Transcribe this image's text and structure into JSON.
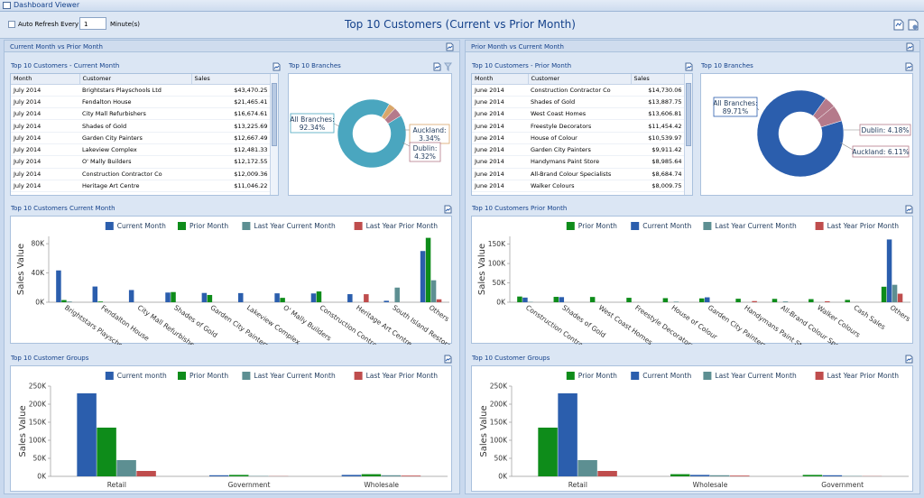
{
  "window": {
    "title": "Dashboard Viewer"
  },
  "toolbar": {
    "auto_refresh_label": "Auto Refresh Every",
    "interval_value": "1",
    "interval_unit": "Minute(s)",
    "title": "Top 10 Customers (Current vs Prior Month)"
  },
  "left": {
    "group_title": "Current Month vs Prior Month",
    "grid_title": "Top 10 Customers - Current Month",
    "grid_columns": [
      "Month",
      "Customer",
      "Sales"
    ],
    "grid_rows": [
      [
        "July 2014",
        "Brightstars Playschools Ltd",
        "$43,470.25"
      ],
      [
        "July 2014",
        "Fendalton House",
        "$21,465.41"
      ],
      [
        "July 2014",
        "City Mall Refurbishers",
        "$16,674.61"
      ],
      [
        "July 2014",
        "Shades of Gold",
        "$13,225.69"
      ],
      [
        "July 2014",
        "Garden City Painters",
        "$12,667.49"
      ],
      [
        "July 2014",
        "Lakeview Complex",
        "$12,481.33"
      ],
      [
        "July 2014",
        "O' Mally Builders",
        "$12,172.55"
      ],
      [
        "July 2014",
        "Construction Contractor Co",
        "$12,009.36"
      ],
      [
        "July 2014",
        "Heritage Art Centre",
        "$11,046.22"
      ]
    ],
    "pie_title": "Top 10 Branches",
    "pie_labels": [
      "All Branches: 92.34%",
      "Auckland: 3.34%",
      "Dublin: 4.32%"
    ],
    "bar1_title": "Top 10 Customers Current Month",
    "bar2_title": "Top 10 Customer Groups"
  },
  "right": {
    "group_title": "Prior Month vs Current Month",
    "grid_title": "Top 10 Customers - Prior Month",
    "grid_columns": [
      "Month",
      "Customer",
      "Sales"
    ],
    "grid_rows": [
      [
        "June 2014",
        "Construction Contractor Co",
        "$14,730.06"
      ],
      [
        "June 2014",
        "Shades of Gold",
        "$13,887.75"
      ],
      [
        "June 2014",
        "West Coast Homes",
        "$13,606.81"
      ],
      [
        "June 2014",
        "Freestyle Decorators",
        "$11,454.42"
      ],
      [
        "June 2014",
        "House of Colour",
        "$10,539.97"
      ],
      [
        "June 2014",
        "Garden City Painters",
        "$9,911.42"
      ],
      [
        "June 2014",
        "Handymans Paint Store",
        "$8,985.64"
      ],
      [
        "June 2014",
        "All-Brand Colour Specialists",
        "$8,684.74"
      ],
      [
        "June 2014",
        "Walker Colours",
        "$8,009.75"
      ]
    ],
    "pie_title": "Top 10 Branches",
    "pie_labels": [
      "All Branches: 89.71%",
      "Dublin: 4.18%",
      "Auckland: 6.11%"
    ],
    "bar1_title": "Top 10 Customers Prior Month",
    "bar2_title": "Top 10 Customer Groups"
  },
  "colors": {
    "current": "#2b5ead",
    "prior": "#0e8c1a",
    "ly_current": "#5d8f92",
    "ly_prior": "#bf4d4d",
    "donut_main": "#4aa6bf",
    "donut_main_r": "#2b5ead",
    "slice_a": "#d9a66a",
    "slice_b": "#b57a8b"
  },
  "chart_data": [
    {
      "type": "pie",
      "title": "Top 10 Branches",
      "labels": [
        "All Branches",
        "Auckland",
        "Dublin"
      ],
      "values": [
        92.34,
        3.34,
        4.32
      ]
    },
    {
      "type": "bar",
      "title": "Top 10 Customers Current Month",
      "ylabel": "Sales Value",
      "ylim": [
        0,
        90000
      ],
      "yticks": [
        "0K",
        "40K",
        "80K"
      ],
      "ytick_values": [
        0,
        40000,
        80000
      ],
      "categories": [
        "Brightstars Playschools Ltd",
        "Fendalton House",
        "City Mall Refurbishers",
        "Shades of Gold",
        "Garden City Painters",
        "Lakeview Complex",
        "O' Mally Builders",
        "Construction Contractor Co",
        "Heritage Art Centre",
        "South Island Restorations",
        "Others"
      ],
      "series": [
        {
          "name": "Current Month",
          "values": [
            43470,
            21465,
            16675,
            13226,
            12667,
            12481,
            12173,
            12009,
            11046,
            2000,
            70000
          ]
        },
        {
          "name": "Prior Month",
          "values": [
            3000,
            1000,
            0,
            13888,
            9911,
            0,
            6000,
            14730,
            0,
            0,
            88000
          ]
        },
        {
          "name": "Last Year Current Month",
          "values": [
            1000,
            0,
            0,
            0,
            0,
            0,
            0,
            0,
            0,
            20000,
            30000
          ]
        },
        {
          "name": "Last Year Prior Month",
          "values": [
            0,
            0,
            0,
            0,
            0,
            0,
            0,
            0,
            11000,
            0,
            4000
          ]
        }
      ]
    },
    {
      "type": "bar",
      "title": "Top 10 Customer Groups",
      "ylabel": "Sales Value",
      "ylim": [
        0,
        250000
      ],
      "yticks": [
        "0K",
        "50K",
        "100K",
        "150K",
        "200K",
        "250K"
      ],
      "ytick_values": [
        0,
        50000,
        100000,
        150000,
        200000,
        250000
      ],
      "categories": [
        "Retail",
        "Government",
        "Wholesale"
      ],
      "series": [
        {
          "name": "Current month",
          "values": [
            230000,
            3000,
            4000
          ]
        },
        {
          "name": "Prior Month",
          "values": [
            135000,
            4000,
            6000
          ]
        },
        {
          "name": "Last Year Current Month",
          "values": [
            45000,
            1000,
            3000
          ]
        },
        {
          "name": "Last Year Prior Month",
          "values": [
            15000,
            500,
            2000
          ]
        }
      ]
    },
    {
      "type": "pie",
      "title": "Top 10 Branches",
      "labels": [
        "All Branches",
        "Dublin",
        "Auckland"
      ],
      "values": [
        89.71,
        4.18,
        6.11
      ]
    },
    {
      "type": "bar",
      "title": "Top 10 Customers Prior Month",
      "ylabel": "Sales Value",
      "ylim": [
        0,
        170000
      ],
      "yticks": [
        "0K",
        "50K",
        "100K",
        "150K"
      ],
      "ytick_values": [
        0,
        50000,
        100000,
        150000
      ],
      "categories": [
        "Construction Contractor Co",
        "Shades of Gold",
        "West Coast Homes",
        "Freestyle Decorators",
        "House of Colour",
        "Garden City Painters",
        "Handymans Paint Store",
        "All-Brand Colour Specialists",
        "Walker Colours",
        "Cash Sales",
        "Others"
      ],
      "series": [
        {
          "name": "Prior Month",
          "values": [
            14730,
            13888,
            13607,
            11454,
            10540,
            9911,
            8986,
            8685,
            8010,
            6000,
            40000
          ]
        },
        {
          "name": "Current Month",
          "values": [
            12009,
            13226,
            0,
            0,
            0,
            12667,
            0,
            0,
            0,
            0,
            162000
          ]
        },
        {
          "name": "Last Year Current Month",
          "values": [
            1000,
            0,
            0,
            0,
            1500,
            0,
            0,
            2000,
            0,
            0,
            45000
          ]
        },
        {
          "name": "Last Year Prior Month",
          "values": [
            0,
            0,
            0,
            0,
            0,
            0,
            3000,
            0,
            2500,
            0,
            22000
          ]
        }
      ]
    },
    {
      "type": "bar",
      "title": "Top 10 Customer Groups",
      "ylabel": "Sales Value",
      "ylim": [
        0,
        250000
      ],
      "yticks": [
        "0K",
        "50K",
        "100K",
        "150K",
        "200K",
        "250K"
      ],
      "ytick_values": [
        0,
        50000,
        100000,
        150000,
        200000,
        250000
      ],
      "categories": [
        "Retail",
        "Wholesale",
        "Government"
      ],
      "series": [
        {
          "name": "Prior Month",
          "values": [
            135000,
            6000,
            4000
          ]
        },
        {
          "name": "Current Month",
          "values": [
            230000,
            4000,
            3000
          ]
        },
        {
          "name": "Last Year Current Month",
          "values": [
            45000,
            3000,
            1000
          ]
        },
        {
          "name": "Last Year Prior Month",
          "values": [
            15000,
            2000,
            500
          ]
        }
      ]
    }
  ]
}
